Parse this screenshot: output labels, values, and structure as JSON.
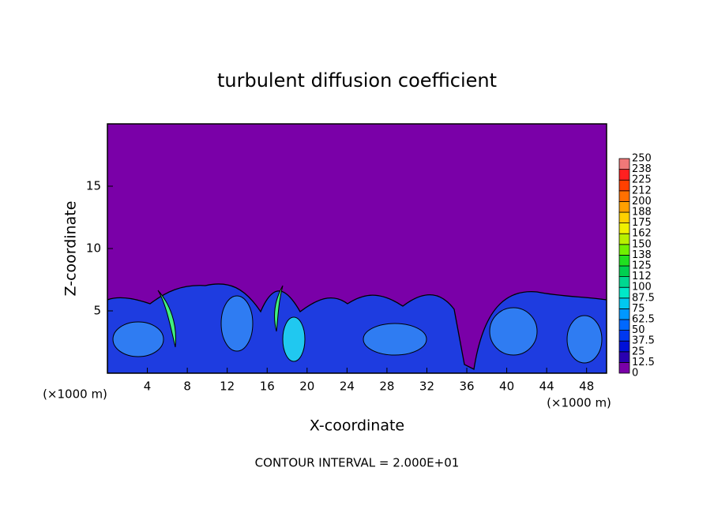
{
  "chart_data": {
    "type": "contour",
    "title": "turbulent diffusion coefficient",
    "x_label": "X-coordinate",
    "y_label": "Z-coordinate",
    "x_unit_labels": [
      "(×1000 m)",
      "(×1000 m)"
    ],
    "footnote": "CONTOUR INTERVAL = 2.000E+01",
    "xlim": [
      0,
      50
    ],
    "ylim": [
      0,
      20
    ],
    "xticks": [
      4,
      8,
      12,
      16,
      20,
      24,
      28,
      32,
      36,
      40,
      44,
      48
    ],
    "yticks": [
      5,
      10,
      15
    ],
    "colorbar": {
      "levels": [
        0,
        12.5,
        25,
        37.5,
        50,
        62.5,
        75,
        87.5,
        100,
        {
          "value": 112.5,
          "label": "112"
        },
        125,
        {
          "value": 137.5,
          "label": "138"
        },
        150,
        {
          "value": 162.5,
          "label": "162"
        },
        175,
        {
          "value": 187.5,
          "label": "188"
        },
        200,
        {
          "value": 212.5,
          "label": "212"
        },
        225,
        {
          "value": 237.5,
          "label": "238"
        },
        250
      ],
      "colors": [
        "#7a00a8",
        "#2a00b0",
        "#0010d8",
        "#0038f0",
        "#0068ff",
        "#0098ff",
        "#00c8f0",
        "#00e8c8",
        "#00d890",
        "#00d050",
        "#20e020",
        "#70f000",
        "#b8f000",
        "#f0f000",
        "#ffd000",
        "#ffa000",
        "#ff7000",
        "#ff4000",
        "#ff2020",
        "#f07878"
      ]
    }
  }
}
